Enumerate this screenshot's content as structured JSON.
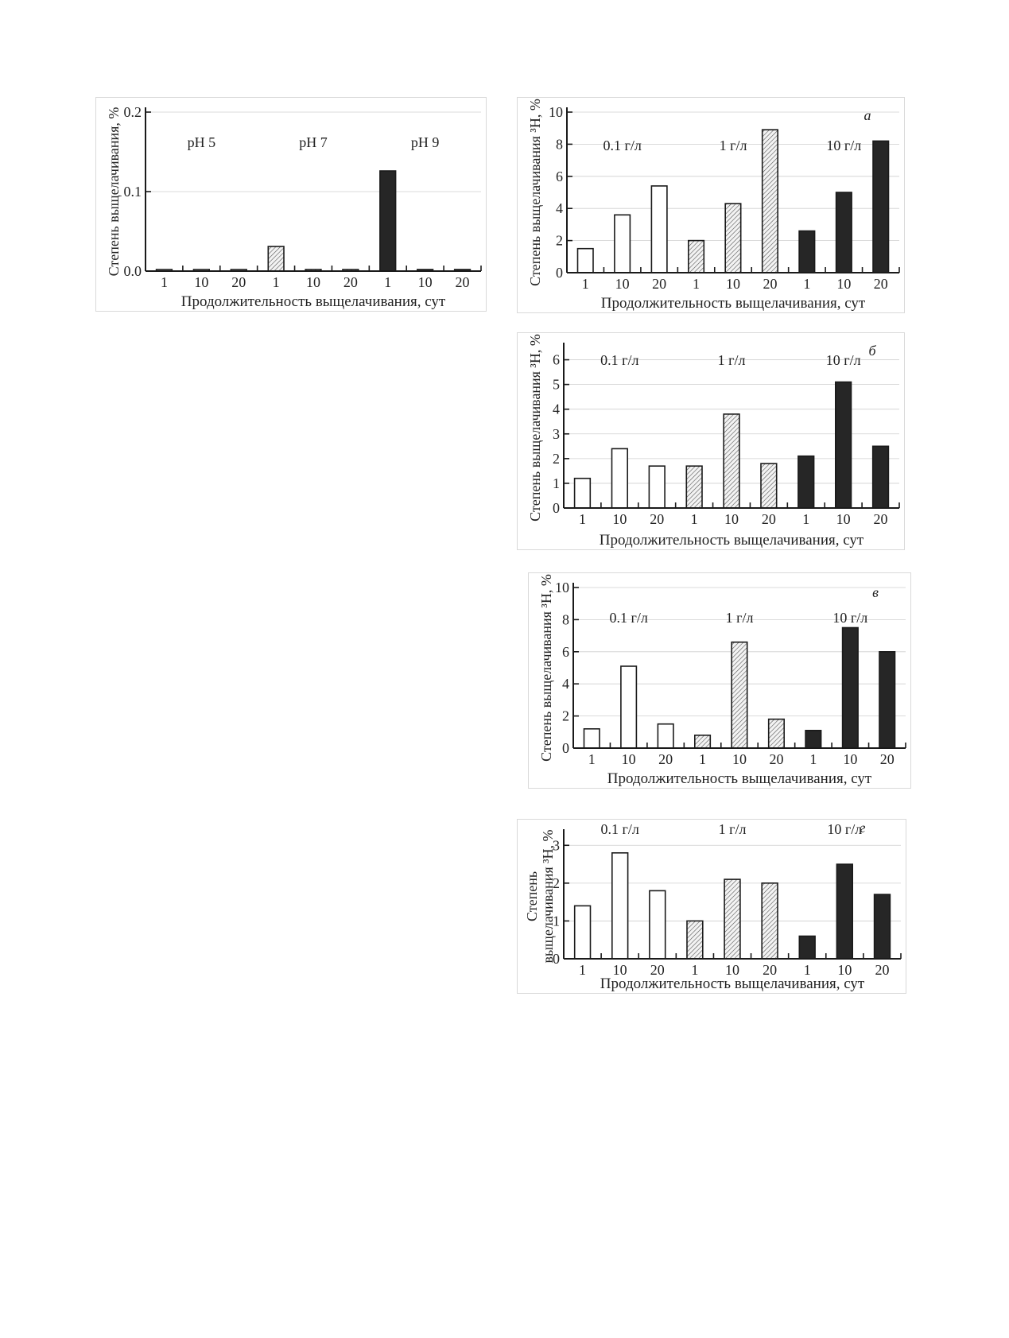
{
  "x_axis_label": "Продолжительность выщелачивания, сут",
  "colors": {
    "open": "#ffffff",
    "hatched": "#bdbdbd",
    "dark": "#262626",
    "axis": "#1a1a1a",
    "grid": "#cfcfcf"
  },
  "chart_data": [
    {
      "type": "bar",
      "panel_label": "",
      "ylabel": "Степень выщелачивания, %",
      "ylabel_lines": [
        "Степень выщелачивания, %"
      ],
      "ylim": [
        0,
        0.2
      ],
      "yticks": [
        "0.0",
        "0.1",
        "0.2"
      ],
      "ytick_values": [
        0,
        0.1,
        0.2
      ],
      "groups": [
        "pH 5",
        "pH 7",
        "pH 9"
      ],
      "categories": [
        "1",
        "10",
        "20",
        "1",
        "10",
        "20",
        "1",
        "10",
        "20"
      ],
      "styles": [
        "open",
        "open",
        "open",
        "hatched",
        "hatched",
        "hatched",
        "dark",
        "dark",
        "dark"
      ],
      "values": [
        0.002,
        0.002,
        0.002,
        0.031,
        0.002,
        0.002,
        0.126,
        0.002,
        0.002
      ]
    },
    {
      "type": "bar",
      "panel_label": "а",
      "ylabel": "Степень выщелачивания ³H, %",
      "ylabel_lines": [
        "Степень выщелачивания ³H, %"
      ],
      "ylim": [
        0,
        10
      ],
      "yticks": [
        "0",
        "2",
        "4",
        "6",
        "8",
        "10"
      ],
      "ytick_values": [
        0,
        2,
        4,
        6,
        8,
        10
      ],
      "groups": [
        "0.1 г/л",
        "1 г/л",
        "10 г/л"
      ],
      "categories": [
        "1",
        "10",
        "20",
        "1",
        "10",
        "20",
        "1",
        "10",
        "20"
      ],
      "styles": [
        "open",
        "open",
        "open",
        "hatched",
        "hatched",
        "hatched",
        "dark",
        "dark",
        "dark"
      ],
      "values": [
        1.5,
        3.6,
        5.4,
        2.0,
        4.3,
        8.9,
        2.6,
        5.0,
        8.2
      ]
    },
    {
      "type": "bar",
      "panel_label": "б",
      "ylabel": "Степень выщелачивания ³H, %",
      "ylabel_lines": [
        "Степень выщелачивания ³H, %"
      ],
      "ylim": [
        0,
        6.5
      ],
      "yticks": [
        "0",
        "1",
        "2",
        "3",
        "4",
        "5",
        "6"
      ],
      "ytick_values": [
        0,
        1,
        2,
        3,
        4,
        5,
        6
      ],
      "groups": [
        "0.1 г/л",
        "1 г/л",
        "10 г/л"
      ],
      "categories": [
        "1",
        "10",
        "20",
        "1",
        "10",
        "20",
        "1",
        "10",
        "20"
      ],
      "styles": [
        "open",
        "open",
        "open",
        "hatched",
        "hatched",
        "hatched",
        "dark",
        "dark",
        "dark"
      ],
      "values": [
        1.2,
        2.4,
        1.7,
        1.7,
        3.8,
        1.8,
        2.1,
        5.1,
        2.5
      ]
    },
    {
      "type": "bar",
      "panel_label": "в",
      "ylabel": "Степень выщелачивания ³H, %",
      "ylabel_lines": [
        "Степень выщелачивания ³H, %"
      ],
      "ylim": [
        0,
        10
      ],
      "yticks": [
        "0",
        "2",
        "4",
        "6",
        "8",
        "10"
      ],
      "ytick_values": [
        0,
        2,
        4,
        6,
        8,
        10
      ],
      "groups": [
        "0.1 г/л",
        "1 г/л",
        "10 г/л"
      ],
      "categories": [
        "1",
        "10",
        "20",
        "1",
        "10",
        "20",
        "1",
        "10",
        "20"
      ],
      "styles": [
        "open",
        "open",
        "open",
        "hatched",
        "hatched",
        "hatched",
        "dark",
        "dark",
        "dark"
      ],
      "values": [
        1.2,
        5.1,
        1.5,
        0.8,
        6.6,
        1.8,
        1.1,
        7.5,
        6.0
      ]
    },
    {
      "type": "bar",
      "panel_label": "г",
      "ylabel": "Степень выщелачивания ³H, %",
      "ylabel_lines": [
        "Степень",
        "выщелачивания ³H, %"
      ],
      "ylim": [
        0,
        3.3
      ],
      "yticks": [
        "0",
        "1",
        "2",
        "3"
      ],
      "ytick_values": [
        0,
        1,
        2,
        3
      ],
      "groups": [
        "0.1 г/л",
        "1 г/л",
        "10 г/л"
      ],
      "categories": [
        "1",
        "10",
        "20",
        "1",
        "10",
        "20",
        "1",
        "10",
        "20"
      ],
      "styles": [
        "open",
        "open",
        "open",
        "hatched",
        "hatched",
        "hatched",
        "dark",
        "dark",
        "dark"
      ],
      "values": [
        1.4,
        2.8,
        1.8,
        1.0,
        2.1,
        2.0,
        0.6,
        2.5,
        1.7
      ]
    }
  ]
}
